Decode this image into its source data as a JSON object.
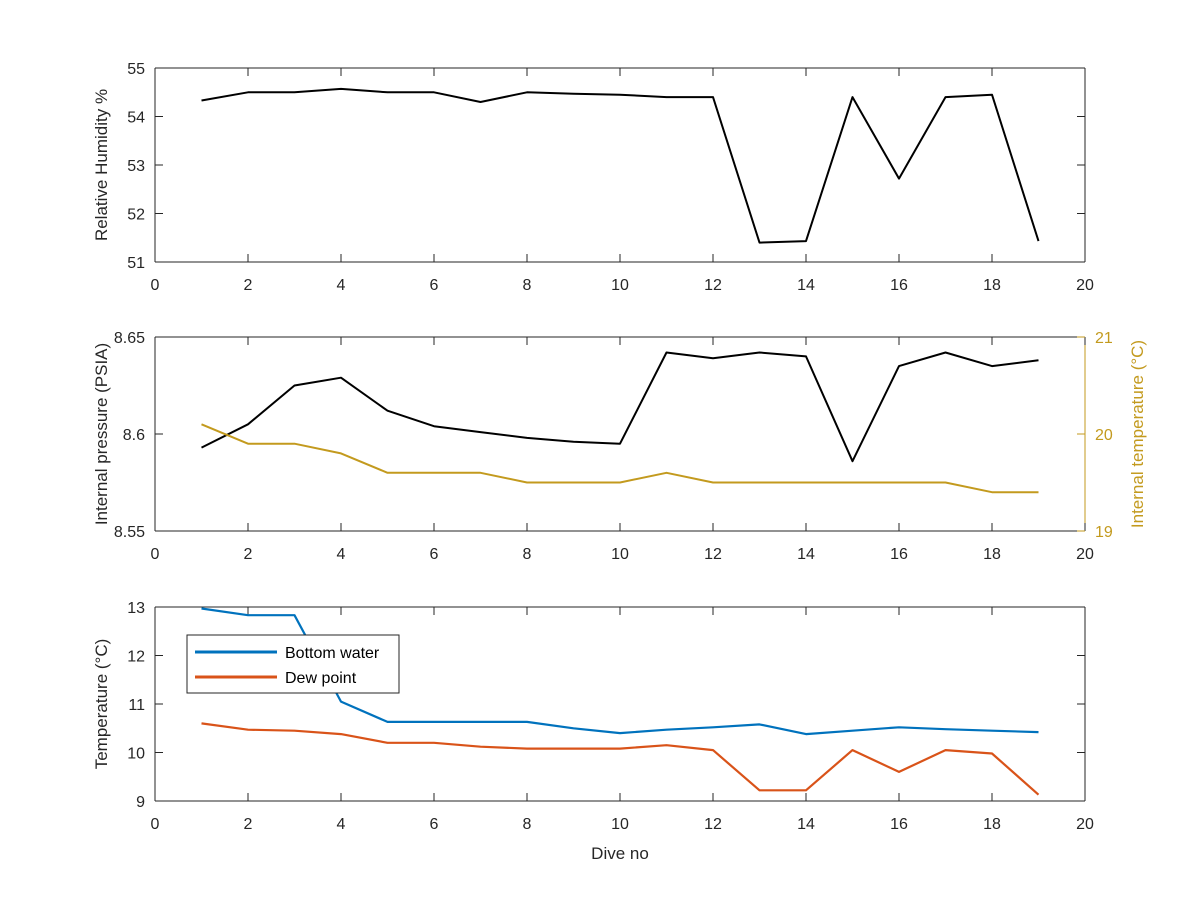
{
  "colors": {
    "black": "#000000",
    "orange_axis": "#C39A1E",
    "bottom_water": "#0072BD",
    "dew_point": "#D95319",
    "axis": "#262626"
  },
  "chart_data": [
    {
      "type": "line",
      "title": "",
      "xlabel": "",
      "ylabel": "Relative Humidity %",
      "xlim": [
        0,
        20
      ],
      "ylim": [
        51,
        55
      ],
      "xticks": [
        "0",
        "2",
        "4",
        "6",
        "8",
        "10",
        "12",
        "14",
        "16",
        "18",
        "20"
      ],
      "yticks": [
        "51",
        "52",
        "53",
        "54",
        "55"
      ],
      "grid": false,
      "series": [
        {
          "color": "#000000",
          "x": [
            1,
            2,
            3,
            4,
            5,
            6,
            7,
            8,
            9,
            10,
            11,
            12,
            13,
            14,
            15,
            16,
            17,
            18,
            19
          ],
          "y": [
            54.33,
            54.5,
            54.5,
            54.57,
            54.5,
            54.5,
            54.3,
            54.5,
            54.47,
            54.45,
            54.4,
            54.4,
            51.4,
            51.43,
            54.4,
            52.72,
            54.4,
            54.45,
            51.43
          ]
        }
      ]
    },
    {
      "type": "line",
      "title": "",
      "xlabel": "",
      "ylabel": "Internal pressure (PSIA)",
      "ylabel_right": "Internal temperature (°C)",
      "xlim": [
        0,
        20
      ],
      "ylim": [
        8.55,
        8.65
      ],
      "ylim_right": [
        19,
        21
      ],
      "xticks": [
        "0",
        "2",
        "4",
        "6",
        "8",
        "10",
        "12",
        "14",
        "16",
        "18",
        "20"
      ],
      "yticks": [
        "8.55",
        "8.6",
        "8.65"
      ],
      "yticks_right": [
        "19",
        "20",
        "21"
      ],
      "grid": false,
      "series": [
        {
          "axis": "left",
          "color": "#000000",
          "x": [
            1,
            2,
            3,
            4,
            5,
            6,
            7,
            8,
            9,
            10,
            11,
            12,
            13,
            14,
            15,
            16,
            17,
            18,
            19
          ],
          "y": [
            8.593,
            8.605,
            8.625,
            8.629,
            8.612,
            8.604,
            8.601,
            8.598,
            8.596,
            8.595,
            8.642,
            8.639,
            8.642,
            8.64,
            8.586,
            8.635,
            8.642,
            8.635,
            8.638
          ]
        },
        {
          "axis": "right",
          "color": "#C39A1E",
          "x": [
            1,
            2,
            3,
            4,
            5,
            6,
            7,
            8,
            9,
            10,
            11,
            12,
            13,
            14,
            15,
            16,
            17,
            18,
            19
          ],
          "y": [
            20.1,
            19.9,
            19.9,
            19.8,
            19.6,
            19.6,
            19.6,
            19.5,
            19.5,
            19.5,
            19.6,
            19.5,
            19.5,
            19.5,
            19.5,
            19.5,
            19.5,
            19.4,
            19.4
          ]
        }
      ]
    },
    {
      "type": "line",
      "title": "",
      "xlabel": "Dive no",
      "ylabel": "Temperature (°C)",
      "xlim": [
        0,
        20
      ],
      "ylim": [
        9,
        13
      ],
      "xticks": [
        "0",
        "2",
        "4",
        "6",
        "8",
        "10",
        "12",
        "14",
        "16",
        "18",
        "20"
      ],
      "yticks": [
        "9",
        "10",
        "11",
        "12",
        "13"
      ],
      "grid": false,
      "legend": "top-left",
      "series": [
        {
          "name": "Bottom water",
          "color": "#0072BD",
          "x": [
            1,
            2,
            3,
            4,
            5,
            6,
            7,
            8,
            9,
            10,
            11,
            12,
            13,
            14,
            15,
            16,
            17,
            18,
            19
          ],
          "y": [
            12.97,
            12.83,
            12.83,
            11.05,
            10.63,
            10.63,
            10.63,
            10.63,
            10.5,
            10.4,
            10.47,
            10.52,
            10.58,
            10.38,
            10.45,
            10.52,
            10.48,
            10.45,
            10.42
          ]
        },
        {
          "name": "Dew point",
          "color": "#D95319",
          "x": [
            1,
            2,
            3,
            4,
            5,
            6,
            7,
            8,
            9,
            10,
            11,
            12,
            13,
            14,
            15,
            16,
            17,
            18,
            19
          ],
          "y": [
            10.6,
            10.47,
            10.45,
            10.38,
            10.2,
            10.2,
            10.12,
            10.08,
            10.08,
            10.08,
            10.15,
            10.05,
            9.22,
            9.22,
            10.05,
            9.6,
            10.05,
            9.98,
            9.13
          ]
        }
      ]
    }
  ]
}
